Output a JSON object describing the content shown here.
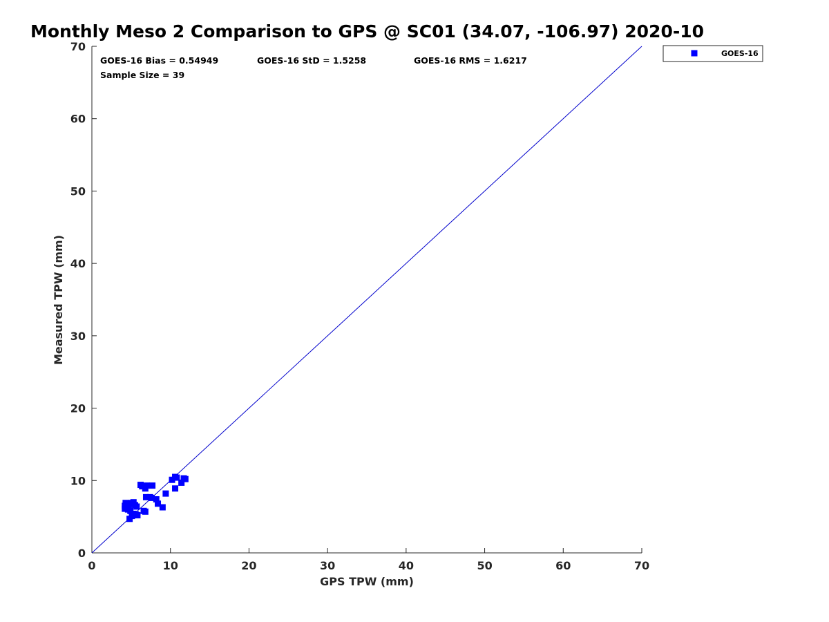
{
  "chart_data": {
    "type": "scatter",
    "title": "Monthly Meso 2 Comparison to GPS @ SC01 (34.07, -106.97) 2020-10",
    "xlabel": "GPS TPW (mm)",
    "ylabel": "Measured TPW (mm)",
    "xlim": [
      0,
      70
    ],
    "ylim": [
      0,
      70
    ],
    "xticks": [
      "0",
      "10",
      "20",
      "30",
      "40",
      "50",
      "60",
      "70"
    ],
    "yticks": [
      "0",
      "10",
      "20",
      "30",
      "40",
      "50",
      "60",
      "70"
    ],
    "grid": false,
    "legend_position": "top-right",
    "reference_line": {
      "from": [
        0,
        0
      ],
      "to": [
        70,
        70
      ],
      "color": "#0000cc"
    },
    "stats": {
      "bias": "GOES-16 Bias = 0.54949",
      "std": "GOES-16 StD = 1.5258",
      "rms": "GOES-16 RMS = 1.6217",
      "sample": "Sample Size = 39"
    },
    "series": [
      {
        "name": "GOES-16",
        "color": "#0000ff",
        "marker": "square",
        "points": [
          [
            4.3,
            6.9
          ],
          [
            4.2,
            6.5
          ],
          [
            4.2,
            6.1
          ],
          [
            4.4,
            6.3
          ],
          [
            4.5,
            6.7
          ],
          [
            4.6,
            6.0
          ],
          [
            4.7,
            6.2
          ],
          [
            4.8,
            6.8
          ],
          [
            4.9,
            5.8
          ],
          [
            5.0,
            6.9
          ],
          [
            5.3,
            7.0
          ],
          [
            5.5,
            6.6
          ],
          [
            5.7,
            6.4
          ],
          [
            4.8,
            4.7
          ],
          [
            5.1,
            5.1
          ],
          [
            5.3,
            5.4
          ],
          [
            5.6,
            5.3
          ],
          [
            5.8,
            5.2
          ],
          [
            6.2,
            9.4
          ],
          [
            6.4,
            9.2
          ],
          [
            6.8,
            8.9
          ],
          [
            7.0,
            9.3
          ],
          [
            7.7,
            9.3
          ],
          [
            6.6,
            5.8
          ],
          [
            6.8,
            5.7
          ],
          [
            6.9,
            7.7
          ],
          [
            7.4,
            7.7
          ],
          [
            7.6,
            7.6
          ],
          [
            8.2,
            7.4
          ],
          [
            8.4,
            6.8
          ],
          [
            9.0,
            6.3
          ],
          [
            9.4,
            8.2
          ],
          [
            10.2,
            10.1
          ],
          [
            10.6,
            10.5
          ],
          [
            10.8,
            10.4
          ],
          [
            10.6,
            8.9
          ],
          [
            11.4,
            9.7
          ],
          [
            11.7,
            10.3
          ],
          [
            11.9,
            10.2
          ]
        ]
      }
    ]
  }
}
